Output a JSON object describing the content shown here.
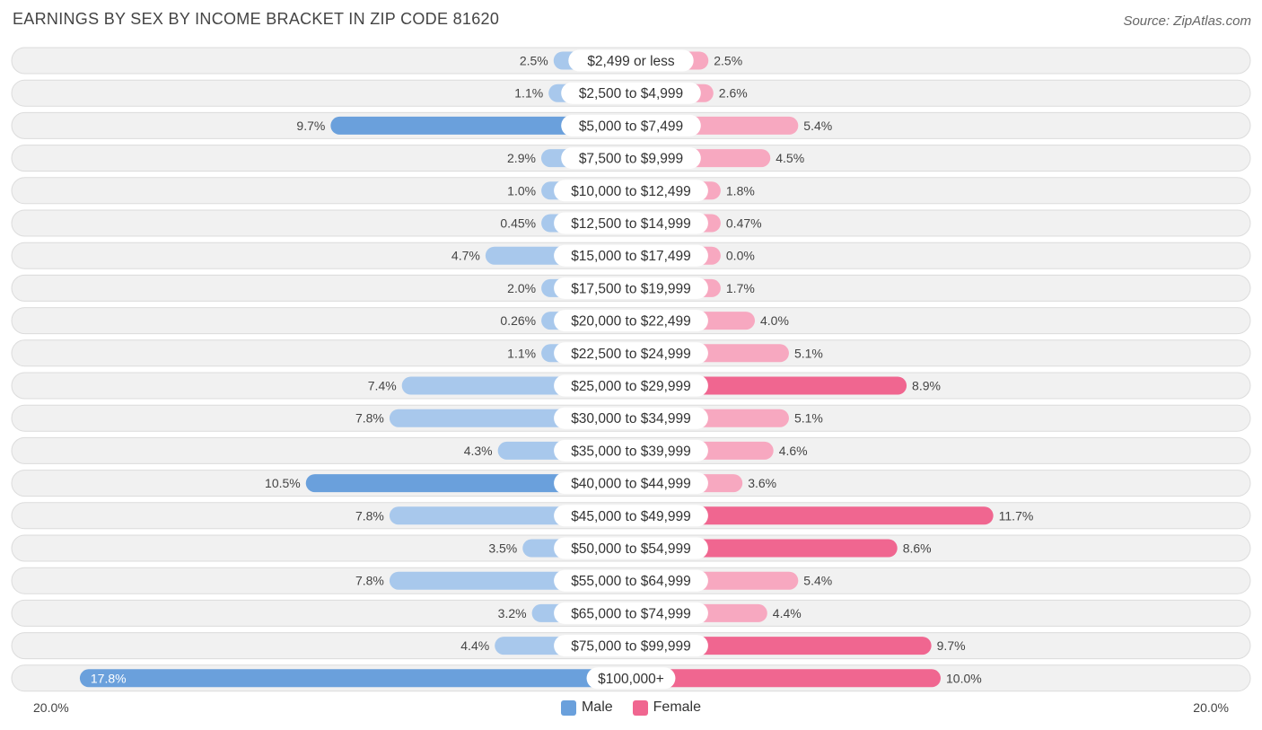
{
  "header": {
    "title": "EARNINGS BY SEX BY INCOME BRACKET IN ZIP CODE 81620",
    "source": "Source: ZipAtlas.com"
  },
  "colors": {
    "male_full": "#6aa0dc",
    "male_light": "#a8c8ec",
    "female_full": "#f06690",
    "female_light": "#f7a8c0"
  },
  "chart_data": {
    "type": "bar",
    "orientation": "horizontal-diverging",
    "title": "EARNINGS BY SEX BY INCOME BRACKET IN ZIP CODE 81620",
    "axis_max": 20.0,
    "axis_left_label": "20.0%",
    "axis_right_label": "20.0%",
    "legend_position": "bottom-center",
    "categories": [
      "$2,499 or less",
      "$2,500 to $4,999",
      "$5,000 to $7,499",
      "$7,500 to $9,999",
      "$10,000 to $12,499",
      "$12,500 to $14,999",
      "$15,000 to $17,499",
      "$17,500 to $19,999",
      "$20,000 to $22,499",
      "$22,500 to $24,999",
      "$25,000 to $29,999",
      "$30,000 to $34,999",
      "$35,000 to $39,999",
      "$40,000 to $44,999",
      "$45,000 to $49,999",
      "$50,000 to $54,999",
      "$55,000 to $64,999",
      "$65,000 to $74,999",
      "$75,000 to $99,999",
      "$100,000+"
    ],
    "series": [
      {
        "name": "Male",
        "values": [
          2.5,
          1.1,
          9.7,
          2.9,
          1.0,
          0.45,
          4.7,
          2.0,
          0.26,
          1.1,
          7.4,
          7.8,
          4.3,
          10.5,
          7.8,
          3.5,
          7.8,
          3.2,
          4.4,
          17.8
        ],
        "labels": [
          "2.5%",
          "1.1%",
          "9.7%",
          "2.9%",
          "1.0%",
          "0.45%",
          "4.7%",
          "2.0%",
          "0.26%",
          "1.1%",
          "7.4%",
          "7.8%",
          "4.3%",
          "10.5%",
          "7.8%",
          "3.5%",
          "7.8%",
          "3.2%",
          "4.4%",
          "17.8%"
        ]
      },
      {
        "name": "Female",
        "values": [
          2.5,
          2.6,
          5.4,
          4.5,
          1.8,
          0.47,
          0.0,
          1.7,
          4.0,
          5.1,
          8.9,
          5.1,
          4.6,
          3.6,
          11.7,
          8.6,
          5.4,
          4.4,
          9.7,
          10.0
        ],
        "labels": [
          "2.5%",
          "2.6%",
          "5.4%",
          "4.5%",
          "1.8%",
          "0.47%",
          "0.0%",
          "1.7%",
          "4.0%",
          "5.1%",
          "8.9%",
          "5.1%",
          "4.6%",
          "3.6%",
          "11.7%",
          "8.6%",
          "5.4%",
          "4.4%",
          "9.7%",
          "10.0%"
        ]
      }
    ]
  },
  "legend": {
    "male_label": "Male",
    "female_label": "Female"
  }
}
